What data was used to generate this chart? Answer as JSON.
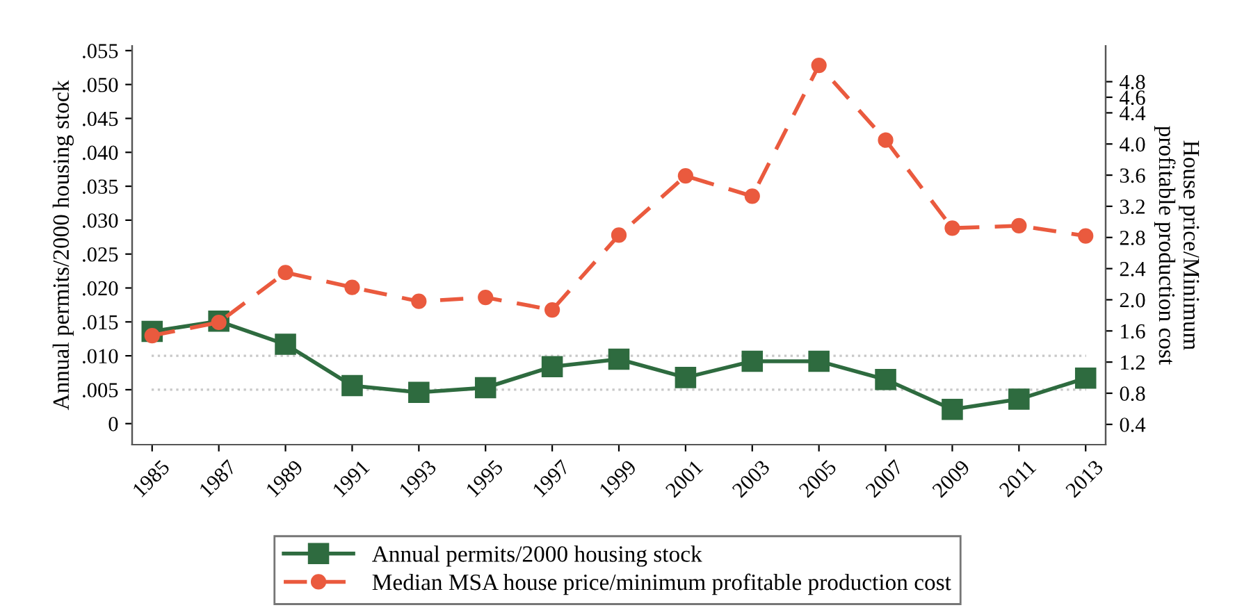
{
  "chart_data": {
    "type": "line",
    "categories": [
      "1985",
      "1987",
      "1989",
      "1991",
      "1993",
      "1995",
      "1997",
      "1999",
      "2001",
      "2003",
      "2005",
      "2007",
      "2009",
      "2011",
      "2013"
    ],
    "ylabel": "Annual permits/2000 housing stock",
    "y2label": "House price/Minimum\nprofitable production cost",
    "ylim": [
      -0.0031,
      0.0557
    ],
    "yticks": [
      {
        "value": 0,
        "label": "0"
      },
      {
        "value": 0.005,
        "label": ".005"
      },
      {
        "value": 0.01,
        "label": ".010"
      },
      {
        "value": 0.015,
        "label": ".015"
      },
      {
        "value": 0.02,
        "label": ".020"
      },
      {
        "value": 0.025,
        "label": ".025"
      },
      {
        "value": 0.03,
        "label": ".030"
      },
      {
        "value": 0.035,
        "label": ".035"
      },
      {
        "value": 0.04,
        "label": ".040"
      },
      {
        "value": 0.045,
        "label": ".045"
      },
      {
        "value": 0.05,
        "label": ".050"
      },
      {
        "value": 0.055,
        "label": ".055"
      }
    ],
    "y2lim": [
      0.14,
      5.26
    ],
    "y2ticks": [
      0.4,
      0.8,
      1.2,
      1.6,
      {
        "value": 2,
        "label": "2.0"
      },
      2.4,
      2.8,
      3.2,
      3.6,
      {
        "value": 4,
        "label": "4.0"
      },
      4.4,
      4.6,
      4.8
    ],
    "series": [
      {
        "name": "Annual permits/2000 housing stock",
        "color": "#2e6b3f",
        "marker": "square",
        "line_style": "solid",
        "values": [
          0.0136,
          0.0151,
          0.0117,
          0.0056,
          0.0046,
          0.0053,
          0.0084,
          0.0095,
          0.0068,
          0.0092,
          0.0092,
          0.0065,
          0.0021,
          0.0036,
          0.0067
        ]
      },
      {
        "name": "Median MSA house price/minimum profitable production cost",
        "color": "#ea5a3e",
        "marker": "circle",
        "line_style": "dashed",
        "axis": "y2",
        "values": [
          1.54,
          1.71,
          2.35,
          2.16,
          1.98,
          2.03,
          1.87,
          2.83,
          3.59,
          3.33,
          5.01,
          4.05,
          2.92,
          2.95,
          2.82
        ]
      }
    ],
    "ref_lines": [
      {
        "axis": "y",
        "value": 0.01,
        "color": "#c8c8c8",
        "line_style": "dotted"
      },
      {
        "axis": "y",
        "value": 0.005,
        "color": "#c8c8c8",
        "line_style": "dotted"
      }
    ],
    "grid": false,
    "legend": "bottom"
  }
}
